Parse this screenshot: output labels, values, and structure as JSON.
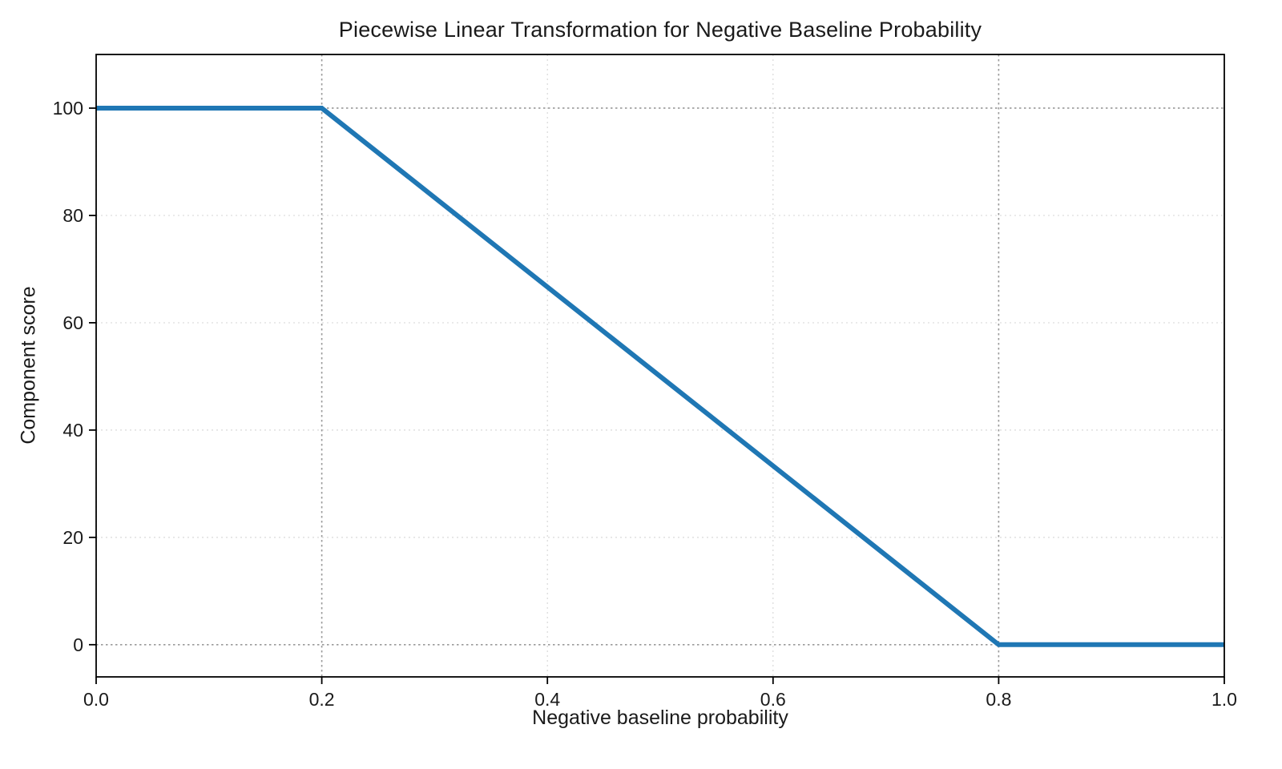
{
  "page": {
    "background": "#ffffff"
  },
  "chart_data": {
    "type": "line",
    "title": "Piecewise Linear Transformation for Negative Baseline Probability",
    "xlabel": "Negative baseline probability",
    "ylabel": "Component score",
    "xlim": [
      0.0,
      1.0
    ],
    "ylim": [
      -6,
      110
    ],
    "xticks": [
      0.0,
      0.2,
      0.4,
      0.6,
      0.8,
      1.0
    ],
    "xtick_labels": [
      "0.0",
      "0.2",
      "0.4",
      "0.6",
      "0.8",
      "1.0"
    ],
    "yticks": [
      0,
      20,
      40,
      60,
      80,
      100
    ],
    "ytick_labels": [
      "0",
      "20",
      "40",
      "60",
      "80",
      "100"
    ],
    "grid": true,
    "legend": "none",
    "series": [
      {
        "name": "component-score-line",
        "color": "#1f77b4",
        "line_width": 6,
        "points": [
          [
            0.0,
            100
          ],
          [
            0.2,
            100
          ],
          [
            0.8,
            0
          ],
          [
            1.0,
            0
          ]
        ]
      }
    ],
    "breakpoints": {
      "vertical_x": [
        0.2,
        0.8
      ],
      "horizontal_y": [
        0,
        100
      ],
      "color": "#9a9a9a",
      "style": "dotted"
    },
    "grid_color": "#d9d9d9",
    "axis_color": "#000000",
    "tick_font_size": 23,
    "text_color": "#1a1a1a"
  }
}
